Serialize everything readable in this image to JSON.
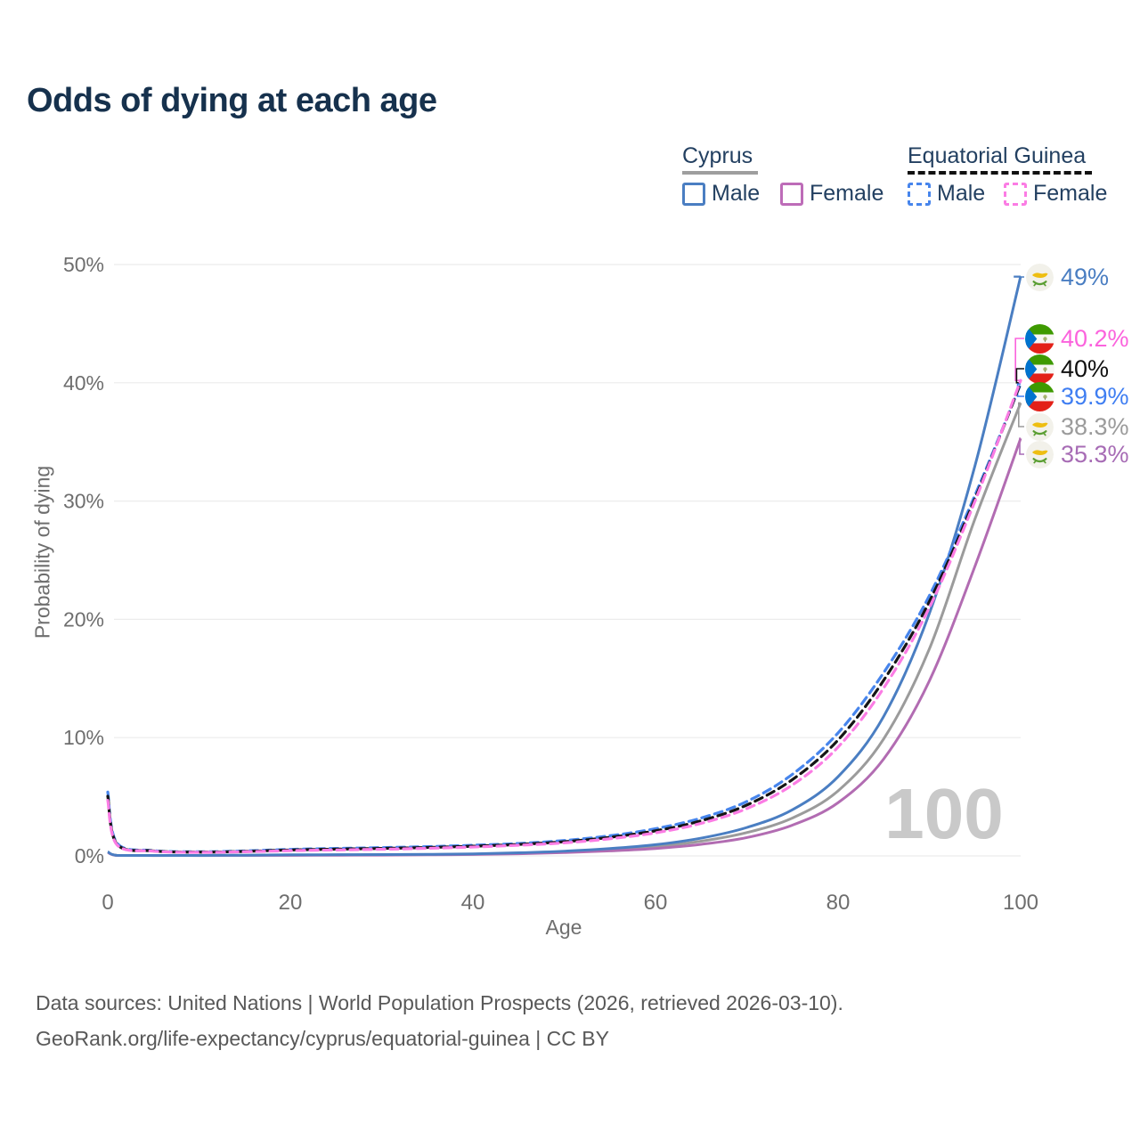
{
  "title": "Odds of dying at each age",
  "watermark": "100",
  "legend": {
    "groups": [
      {
        "name": "Cyprus",
        "line_style": "solid",
        "underline_color": "#9e9e9e",
        "items": [
          {
            "label": "Male",
            "color": "#4a7ec2"
          },
          {
            "label": "Female",
            "color": "#bd6cb8"
          }
        ]
      },
      {
        "name": "Equatorial Guinea",
        "line_style": "dashed",
        "underline_color": "#111111",
        "items": [
          {
            "label": "Male",
            "color": "#4785ec"
          },
          {
            "label": "Female",
            "color": "#fb7ce4"
          }
        ]
      }
    ]
  },
  "chart_data": {
    "type": "line",
    "title": "Odds of dying at each age",
    "xlabel": "Age",
    "ylabel": "Probability of dying",
    "xlim": [
      0,
      100
    ],
    "ylim_percent": [
      0,
      50
    ],
    "x_ticks": [
      "0",
      "20",
      "40",
      "60",
      "80",
      "100"
    ],
    "y_ticks": [
      "0%",
      "10%",
      "20%",
      "30%",
      "40%",
      "50%"
    ],
    "grid": "horizontal",
    "legend_position": "top-right",
    "ages": [
      0,
      1,
      5,
      10,
      15,
      20,
      25,
      30,
      35,
      40,
      45,
      50,
      55,
      60,
      65,
      70,
      75,
      80,
      85,
      90,
      95,
      100
    ],
    "series": [
      {
        "name": "Cyprus Male",
        "country": "Cyprus",
        "sex": "Male",
        "style": "solid",
        "color": "#4a7ec2",
        "end_value_percent": 49,
        "values_percent": [
          0.35,
          0.05,
          0.04,
          0.04,
          0.06,
          0.09,
          0.1,
          0.11,
          0.13,
          0.17,
          0.26,
          0.4,
          0.62,
          0.95,
          1.5,
          2.4,
          3.9,
          6.7,
          11.8,
          20.5,
          33.0,
          49.0
        ]
      },
      {
        "name": "Cyprus Female",
        "country": "Cyprus",
        "sex": "Female",
        "style": "solid",
        "color": "#b26cb2",
        "end_value_percent": 35.3,
        "values_percent": [
          0.3,
          0.04,
          0.03,
          0.03,
          0.04,
          0.05,
          0.06,
          0.07,
          0.09,
          0.12,
          0.18,
          0.28,
          0.42,
          0.62,
          0.98,
          1.55,
          2.6,
          4.5,
          8.2,
          14.8,
          24.5,
          35.3
        ]
      },
      {
        "name": "Cyprus Both sexes",
        "country": "Cyprus",
        "sex": "Both",
        "style": "solid",
        "color": "#9b9b9b",
        "end_value_percent": 38.3,
        "values_percent": [
          0.33,
          0.045,
          0.035,
          0.035,
          0.05,
          0.07,
          0.08,
          0.09,
          0.11,
          0.145,
          0.22,
          0.34,
          0.52,
          0.78,
          1.24,
          1.97,
          3.2,
          5.5,
          9.9,
          17.5,
          28.5,
          38.3
        ]
      },
      {
        "name": "Equatorial Guinea Male",
        "country": "Equatorial Guinea",
        "sex": "Male",
        "style": "dashed",
        "color": "#4785ec",
        "end_value_percent": 39.9,
        "values_percent": [
          5.4,
          1.1,
          0.45,
          0.35,
          0.42,
          0.55,
          0.63,
          0.7,
          0.78,
          0.9,
          1.05,
          1.3,
          1.7,
          2.3,
          3.2,
          4.6,
          6.9,
          10.4,
          15.5,
          22.0,
          30.5,
          39.9
        ]
      },
      {
        "name": "Equatorial Guinea Female",
        "country": "Equatorial Guinea",
        "sex": "Female",
        "style": "dashed",
        "color": "#fb7ce4",
        "end_value_percent": 40.2,
        "values_percent": [
          4.7,
          0.95,
          0.4,
          0.3,
          0.35,
          0.44,
          0.5,
          0.56,
          0.64,
          0.75,
          0.9,
          1.1,
          1.45,
          1.95,
          2.75,
          4.0,
          6.0,
          9.2,
          14.2,
          21.0,
          30.0,
          40.2
        ]
      },
      {
        "name": "Equatorial Guinea Both sexes",
        "country": "Equatorial Guinea",
        "sex": "Both",
        "style": "dashed",
        "color": "#151515",
        "end_value_percent": 40,
        "values_percent": [
          5.05,
          1.0,
          0.42,
          0.32,
          0.38,
          0.5,
          0.57,
          0.63,
          0.71,
          0.82,
          0.97,
          1.2,
          1.57,
          2.12,
          2.97,
          4.3,
          6.45,
          9.8,
          14.85,
          21.5,
          30.2,
          40.0
        ]
      }
    ]
  },
  "end_labels": [
    {
      "text": "49%",
      "flag": "cyprus",
      "color": "#4a7ec2",
      "series_index": 0
    },
    {
      "text": "40.2%",
      "flag": "equatorial-guinea",
      "color": "#fb63dd",
      "series_index": 4
    },
    {
      "text": "40%",
      "flag": "equatorial-guinea",
      "color": "#101010",
      "series_index": 5
    },
    {
      "text": "39.9%",
      "flag": "equatorial-guinea",
      "color": "#3f7ef2",
      "series_index": 3
    },
    {
      "text": "38.3%",
      "flag": "cyprus",
      "color": "#9b9b9b",
      "series_index": 2
    },
    {
      "text": "35.3%",
      "flag": "cyprus",
      "color": "#a76cb5",
      "series_index": 1
    }
  ],
  "footer": {
    "line1": "Data sources: United Nations | World Population Prospects (2026, retrieved 2026-03-10).",
    "line2": "GeoRank.org/life-expectancy/cyprus/equatorial-guinea | CC BY"
  }
}
